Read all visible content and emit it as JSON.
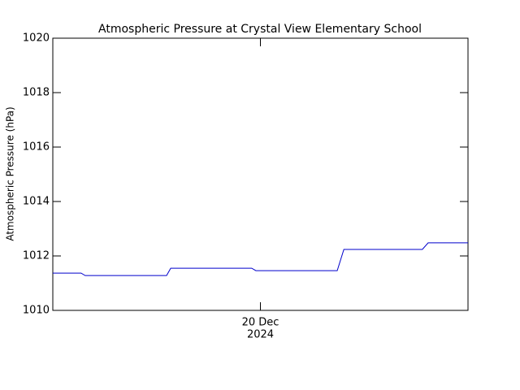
{
  "chart_data": {
    "type": "line",
    "title": "Atmospheric Pressure at Crystal View Elementary School",
    "y_label": "Atmospheric Pressure (hPa)",
    "x": [
      19.5,
      19.568,
      19.578,
      19.774,
      19.784,
      19.979,
      19.989,
      20.185,
      20.201,
      20.39,
      20.404,
      20.5
    ],
    "series": [
      {
        "color": "#0000cc",
        "values": [
          1011.37,
          1011.37,
          1011.28,
          1011.28,
          1011.55,
          1011.55,
          1011.46,
          1011.46,
          1012.24,
          1012.24,
          1012.48,
          1012.48
        ]
      }
    ],
    "xlim": [
      19.5,
      20.5
    ],
    "xticks": [
      {
        "value": 20,
        "label": [
          "20 Dec",
          "2024"
        ]
      }
    ],
    "ylim": [
      1010,
      1020
    ],
    "yticks": [
      1010,
      1012,
      1014,
      1016,
      1018,
      1020
    ],
    "grid": false
  }
}
